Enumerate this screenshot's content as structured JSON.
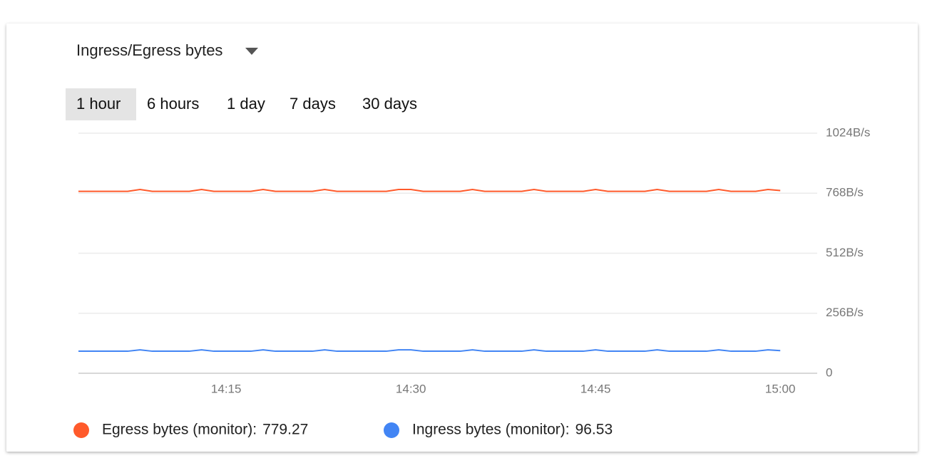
{
  "header": {
    "title": "Ingress/Egress bytes"
  },
  "ranges": [
    "1 hour",
    "6 hours",
    "1 day",
    "7 days",
    "30 days"
  ],
  "chart_data": {
    "type": "line",
    "x": [
      843,
      844,
      845,
      846,
      847,
      848,
      849,
      850,
      851,
      852,
      853,
      854,
      855,
      856,
      857,
      858,
      859,
      860,
      861,
      862,
      863,
      864,
      865,
      866,
      867,
      868,
      869,
      870,
      871,
      872,
      873,
      874,
      875,
      876,
      877,
      878,
      879,
      880,
      881,
      882,
      883,
      884,
      885,
      886,
      887,
      888,
      889,
      890,
      891,
      892,
      893,
      894,
      895,
      896,
      897,
      898,
      899,
      900
    ],
    "xlim": [
      843,
      903
    ],
    "xticks": [
      {
        "value": 855,
        "label": "14:15"
      },
      {
        "value": 870,
        "label": "14:30"
      },
      {
        "value": 885,
        "label": "14:45"
      },
      {
        "value": 900,
        "label": "15:00"
      }
    ],
    "ylim": [
      0,
      1024
    ],
    "yticks": [
      0,
      {
        "value": 256,
        "label": "256B/s"
      },
      {
        "value": 512,
        "label": "512B/s"
      },
      {
        "value": 768,
        "label": "768B/s"
      },
      {
        "value": 1024,
        "label": "1024B/s"
      }
    ],
    "grid": true,
    "series": [
      {
        "name": "Egress bytes (monitor):",
        "color": "#ff5a2b",
        "values": [
          776,
          776,
          776,
          776,
          776,
          784,
          776,
          776,
          776,
          776,
          784,
          776,
          776,
          776,
          776,
          784,
          776,
          776,
          776,
          776,
          784,
          776,
          776,
          776,
          776,
          776,
          784,
          784,
          776,
          776,
          776,
          776,
          784,
          776,
          776,
          776,
          776,
          784,
          776,
          776,
          776,
          776,
          784,
          776,
          776,
          776,
          776,
          784,
          776,
          776,
          776,
          776,
          784,
          776,
          776,
          776,
          784,
          779.27
        ]
      },
      {
        "name": "Ingress bytes (monitor):",
        "color": "#4285f4",
        "values": [
          94,
          94,
          94,
          94,
          94,
          100,
          94,
          94,
          94,
          94,
          100,
          94,
          94,
          94,
          94,
          100,
          94,
          94,
          94,
          94,
          100,
          94,
          94,
          94,
          94,
          94,
          100,
          100,
          94,
          94,
          94,
          94,
          100,
          94,
          94,
          94,
          94,
          100,
          94,
          94,
          94,
          94,
          100,
          94,
          94,
          94,
          94,
          100,
          94,
          94,
          94,
          94,
          100,
          94,
          94,
          94,
          100,
          96.53
        ]
      }
    ]
  }
}
